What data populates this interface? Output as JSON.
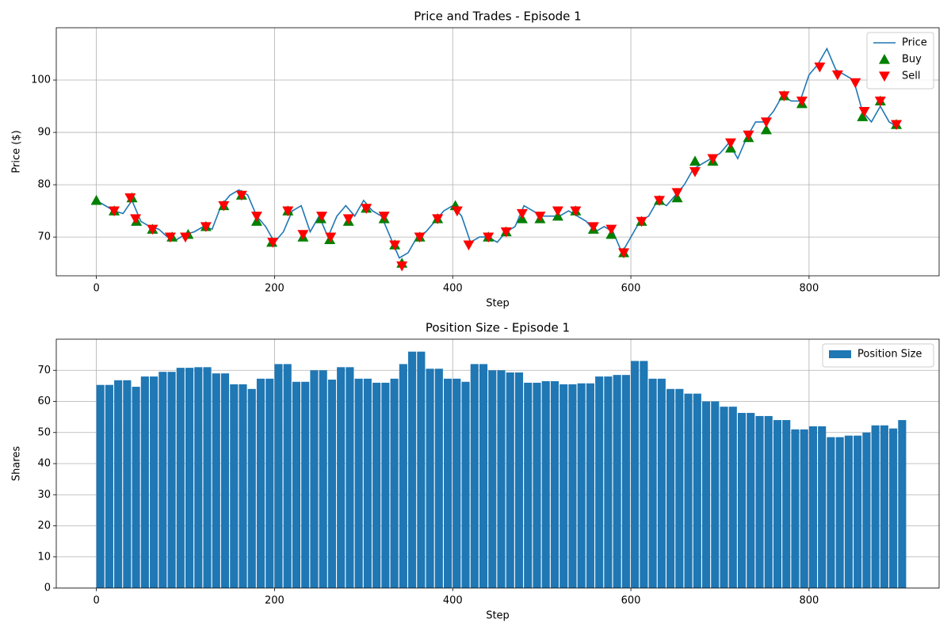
{
  "chart_data": [
    {
      "type": "line",
      "title": "Price and Trades - Episode 1",
      "xlabel": "Step",
      "ylabel": "Price ($)",
      "xlim": [
        -45,
        946
      ],
      "ylim": [
        62.6,
        110
      ],
      "xticks": [
        0,
        200,
        400,
        600,
        800
      ],
      "yticks": [
        70,
        80,
        90,
        100
      ],
      "grid": true,
      "legend": "upper right",
      "x": [
        0,
        10,
        20,
        30,
        40,
        50,
        60,
        70,
        80,
        90,
        100,
        110,
        120,
        130,
        140,
        150,
        160,
        170,
        180,
        190,
        200,
        210,
        220,
        230,
        240,
        250,
        260,
        270,
        280,
        290,
        300,
        310,
        320,
        330,
        340,
        350,
        360,
        370,
        380,
        390,
        400,
        410,
        420,
        430,
        440,
        450,
        460,
        470,
        480,
        490,
        500,
        510,
        520,
        530,
        540,
        550,
        560,
        570,
        580,
        590,
        600,
        610,
        620,
        630,
        640,
        650,
        660,
        670,
        680,
        690,
        700,
        710,
        720,
        730,
        740,
        750,
        760,
        770,
        780,
        790,
        800,
        810,
        820,
        830,
        840,
        850,
        860,
        870,
        880,
        890,
        900
      ],
      "series": [
        {
          "name": "Price",
          "color": "#1f77b4",
          "values": [
            77,
            76,
            75,
            74.5,
            77,
            73,
            72,
            71.5,
            70,
            69.5,
            70.5,
            71,
            72,
            71.5,
            76,
            78,
            79,
            78,
            74,
            72,
            69,
            71,
            75,
            76,
            71,
            74,
            70,
            74,
            76,
            74,
            77,
            75,
            74,
            70,
            66,
            67,
            70,
            71,
            73,
            75,
            76,
            74,
            69,
            70,
            70,
            69,
            71,
            72,
            76,
            75,
            74,
            74,
            74,
            75,
            74,
            73,
            71,
            72,
            71,
            67,
            70,
            73,
            74,
            77,
            76,
            78,
            80,
            83,
            84,
            85,
            86,
            88,
            85,
            89,
            92,
            92,
            94,
            97,
            96,
            96,
            101,
            103,
            106,
            102,
            101,
            100,
            94,
            92,
            95,
            92,
            91
          ]
        },
        {
          "name": "Buy",
          "color": "#008000",
          "marker": "^",
          "x": [
            0,
            20,
            40,
            45,
            63,
            85,
            103,
            123,
            143,
            163,
            180,
            197,
            215,
            232,
            252,
            262,
            283,
            303,
            323,
            335,
            343,
            363,
            383,
            403,
            440,
            460,
            478,
            498,
            518,
            538,
            558,
            578,
            592,
            612,
            632,
            652,
            672,
            692,
            712,
            732,
            752,
            772,
            792,
            860,
            880,
            898
          ],
          "values": [
            77,
            75,
            77.5,
            73,
            71.5,
            70,
            70.5,
            72,
            76,
            78,
            73,
            69,
            75,
            70,
            73.5,
            69.5,
            73,
            75.5,
            73.5,
            68.5,
            65,
            70,
            73.5,
            76,
            70,
            71,
            73.5,
            73.5,
            74,
            75,
            71.5,
            70.5,
            67,
            73,
            77,
            77.5,
            84.5,
            84.5,
            87,
            89,
            90.5,
            97,
            95.5,
            93,
            96,
            91.5
          ]
        },
        {
          "name": "Sell",
          "color": "#ff0000",
          "marker": "v",
          "x": [
            20,
            38,
            44,
            63,
            83,
            100,
            123,
            143,
            163,
            180,
            198,
            215,
            232,
            253,
            263,
            283,
            303,
            323,
            335,
            343,
            363,
            383,
            405,
            418,
            440,
            460,
            478,
            498,
            518,
            538,
            558,
            578,
            592,
            612,
            632,
            652,
            672,
            692,
            712,
            732,
            752,
            772,
            792,
            812,
            832,
            852,
            862,
            880,
            898
          ],
          "values": [
            75,
            77.5,
            73.5,
            71.5,
            70,
            70,
            72,
            76,
            78,
            74,
            69,
            75,
            70.5,
            74,
            70,
            73.5,
            75.5,
            74,
            68.5,
            64.5,
            70,
            73.5,
            75,
            68.5,
            70,
            71,
            74.5,
            74,
            75,
            75,
            72,
            71.5,
            67,
            73,
            77,
            78.5,
            82.5,
            85,
            88,
            89.5,
            92,
            97,
            96,
            102.5,
            101,
            99.5,
            94,
            96,
            91.5
          ]
        }
      ]
    },
    {
      "type": "bar",
      "title": "Position Size - Episode 1",
      "xlabel": "Step",
      "ylabel": "Shares",
      "xlim": [
        -45,
        946
      ],
      "ylim": [
        0,
        80
      ],
      "xticks": [
        0,
        200,
        400,
        600,
        800
      ],
      "yticks": [
        0,
        10,
        20,
        30,
        40,
        50,
        60,
        70
      ],
      "grid": true,
      "legend": "upper right",
      "x": [
        0,
        10,
        20,
        30,
        40,
        50,
        60,
        70,
        80,
        90,
        100,
        110,
        120,
        130,
        140,
        150,
        160,
        170,
        180,
        190,
        200,
        210,
        220,
        230,
        240,
        250,
        260,
        270,
        280,
        290,
        300,
        310,
        320,
        330,
        340,
        350,
        360,
        370,
        380,
        390,
        400,
        410,
        420,
        430,
        440,
        450,
        460,
        470,
        480,
        490,
        500,
        510,
        520,
        530,
        540,
        550,
        560,
        570,
        580,
        590,
        600,
        610,
        620,
        630,
        640,
        650,
        660,
        670,
        680,
        690,
        700,
        710,
        720,
        730,
        740,
        750,
        760,
        770,
        780,
        790,
        800,
        810,
        820,
        830,
        840,
        850,
        860,
        870,
        880,
        890,
        900
      ],
      "series": [
        {
          "name": "Position Size",
          "color": "#1f77b4",
          "values": [
            65.3,
            65.3,
            66.8,
            66.8,
            64.7,
            68,
            68,
            69.5,
            69.5,
            70.8,
            70.8,
            71,
            71,
            69,
            69,
            65.5,
            65.5,
            64,
            67.3,
            67.3,
            72,
            72,
            66.3,
            66.3,
            70,
            70,
            67,
            71,
            71,
            67.3,
            67.3,
            66,
            66,
            67.3,
            72,
            76,
            76,
            70.5,
            70.5,
            67.3,
            67.3,
            66.3,
            72,
            72,
            70,
            70,
            69.3,
            69.3,
            66,
            66,
            66.5,
            66.5,
            65.5,
            65.5,
            65.8,
            65.8,
            68,
            68,
            68.5,
            68.5,
            73,
            73,
            67.3,
            67.3,
            64,
            64,
            62.5,
            62.5,
            60,
            60,
            58.3,
            58.3,
            56.3,
            56.3,
            55.3,
            55.3,
            54,
            54,
            51,
            51,
            52,
            52,
            48.5,
            48.5,
            49,
            49,
            50,
            52.3,
            52.3,
            51.3,
            54
          ]
        }
      ]
    }
  ]
}
